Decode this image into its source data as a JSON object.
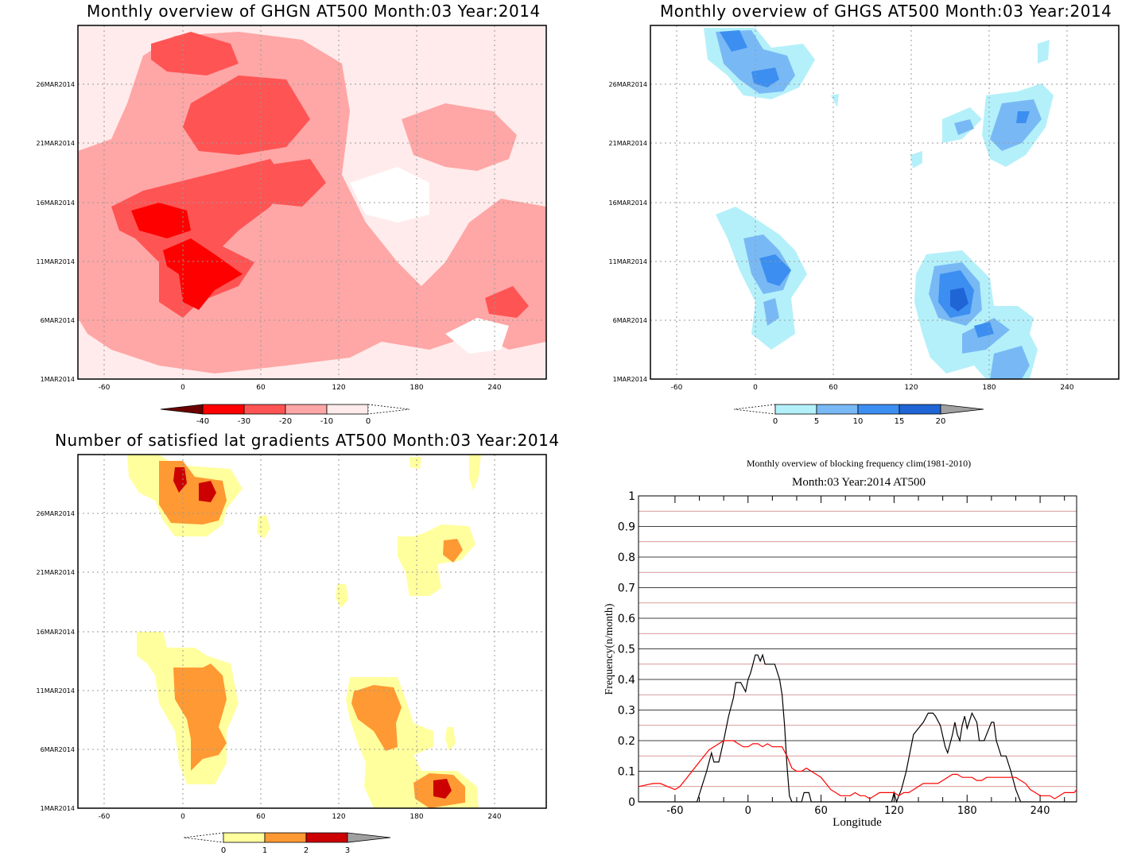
{
  "chart_data": [
    {
      "type": "heatmap",
      "title": "Monthly overview of GHGN AT500 Month:03 Year:2014",
      "x_ticks": [
        "-60",
        "0",
        "60",
        "120",
        "180",
        "240"
      ],
      "y_ticks": [
        "1MAR2014",
        "6MAR2014",
        "11MAR2014",
        "16MAR2014",
        "21MAR2014",
        "26MAR2014"
      ],
      "colorbar": {
        "labels": [
          "-40",
          "-30",
          "-20",
          "-10",
          "0"
        ],
        "colors": [
          "#6b0000",
          "#ff0000",
          "#ff5454",
          "#ffa6a6",
          "#ffebeb"
        ]
      }
    },
    {
      "type": "heatmap",
      "title": "Monthly overview of GHGS AT500 Month:03 Year:2014",
      "x_ticks": [
        "-60",
        "0",
        "60",
        "120",
        "180",
        "240"
      ],
      "y_ticks": [
        "1MAR2014",
        "6MAR2014",
        "11MAR2014",
        "16MAR2014",
        "21MAR2014",
        "26MAR2014"
      ],
      "colorbar": {
        "labels": [
          "0",
          "5",
          "10",
          "15",
          "20"
        ],
        "colors": [
          "#b4f0fa",
          "#78b9f5",
          "#3c8ef0",
          "#1f65d6",
          "#a0a0a0"
        ]
      }
    },
    {
      "type": "heatmap",
      "title": "Number of satisfied lat gradients AT500 Month:03 Year:2014",
      "x_ticks": [
        "-60",
        "0",
        "60",
        "120",
        "180",
        "240"
      ],
      "y_ticks": [
        "1MAR2014",
        "6MAR2014",
        "11MAR2014",
        "16MAR2014",
        "21MAR2014",
        "26MAR2014"
      ],
      "colorbar": {
        "labels": [
          "0",
          "1",
          "2",
          "3"
        ],
        "colors": [
          "#ffff9e",
          "#ff9933",
          "#cc0000",
          "#a0a0a0"
        ]
      }
    },
    {
      "type": "line",
      "title": "Monthly overview of blocking frequency clim(1981-2010)",
      "subtitle": "Month:03 Year:2014  AT500",
      "xlabel": "Longitude",
      "ylabel": "Frequency(n/month)",
      "xlim": [
        -90,
        270
      ],
      "ylim": [
        0,
        1
      ],
      "x_ticks": [
        "-60",
        "0",
        "60",
        "120",
        "180",
        "240"
      ],
      "y_ticks": [
        "0",
        "0.1",
        "0.2",
        "0.3",
        "0.4",
        "0.5",
        "0.6",
        "0.7",
        "0.8",
        "0.9",
        "1"
      ],
      "grid": true,
      "series": [
        {
          "color": "#000000",
          "x": [
            -90,
            -42,
            -38,
            -34,
            -30,
            -28,
            -24,
            -20,
            -16,
            -12,
            -10,
            -6,
            -2,
            0,
            2,
            4,
            6,
            8,
            10,
            12,
            14,
            18,
            22,
            26,
            28,
            30,
            32,
            34,
            36,
            38,
            40,
            44,
            46,
            50,
            52,
            54,
            56,
            118,
            120,
            122,
            124,
            126,
            130,
            134,
            136,
            140,
            144,
            148,
            152,
            154,
            158,
            162,
            164,
            168,
            170,
            172,
            174,
            176,
            178,
            180,
            184,
            188,
            190,
            192,
            194,
            196,
            200,
            202,
            204,
            208,
            212,
            216,
            220,
            224,
            226,
            230,
            270
          ],
          "y": [
            0,
            0,
            0.05,
            0.1,
            0.16,
            0.13,
            0.13,
            0.2,
            0.28,
            0.34,
            0.39,
            0.39,
            0.36,
            0.4,
            0.42,
            0.45,
            0.48,
            0.48,
            0.46,
            0.48,
            0.45,
            0.45,
            0.45,
            0.4,
            0.35,
            0.25,
            0.12,
            0.02,
            0,
            0,
            0,
            0,
            0.03,
            0.03,
            0,
            0,
            0,
            0,
            0.03,
            0,
            0.02,
            0.04,
            0.1,
            0.18,
            0.22,
            0.24,
            0.26,
            0.29,
            0.29,
            0.28,
            0.25,
            0.18,
            0.16,
            0.22,
            0.26,
            0.22,
            0.2,
            0.25,
            0.28,
            0.24,
            0.29,
            0.26,
            0.2,
            0.2,
            0.2,
            0.22,
            0.26,
            0.26,
            0.2,
            0.15,
            0.15,
            0.1,
            0.04,
            0,
            0,
            0,
            0
          ]
        },
        {
          "color": "#ff0000",
          "x": [
            -90,
            -84,
            -78,
            -72,
            -66,
            -60,
            -56,
            -52,
            -48,
            -44,
            -40,
            -36,
            -32,
            -28,
            -24,
            -20,
            -16,
            -12,
            -8,
            -4,
            0,
            4,
            8,
            12,
            16,
            20,
            24,
            28,
            32,
            36,
            40,
            44,
            48,
            52,
            56,
            60,
            64,
            68,
            72,
            76,
            80,
            84,
            88,
            92,
            96,
            100,
            104,
            108,
            112,
            116,
            120,
            124,
            128,
            132,
            136,
            140,
            144,
            148,
            152,
            156,
            160,
            164,
            168,
            172,
            176,
            180,
            184,
            188,
            192,
            196,
            200,
            204,
            208,
            212,
            216,
            220,
            224,
            228,
            232,
            236,
            240,
            244,
            248,
            252,
            256,
            260,
            264,
            268,
            272
          ],
          "y": [
            0.05,
            0.055,
            0.06,
            0.06,
            0.05,
            0.04,
            0.05,
            0.07,
            0.09,
            0.11,
            0.13,
            0.15,
            0.17,
            0.18,
            0.19,
            0.2,
            0.2,
            0.2,
            0.19,
            0.18,
            0.18,
            0.19,
            0.19,
            0.18,
            0.19,
            0.18,
            0.18,
            0.18,
            0.15,
            0.11,
            0.1,
            0.1,
            0.11,
            0.1,
            0.09,
            0.08,
            0.06,
            0.04,
            0.03,
            0.02,
            0.02,
            0.02,
            0.03,
            0.02,
            0.02,
            0.01,
            0.02,
            0.03,
            0.03,
            0.03,
            0.03,
            0.02,
            0.03,
            0.03,
            0.04,
            0.05,
            0.06,
            0.06,
            0.06,
            0.06,
            0.07,
            0.08,
            0.09,
            0.09,
            0.08,
            0.08,
            0.08,
            0.07,
            0.07,
            0.08,
            0.08,
            0.08,
            0.08,
            0.08,
            0.08,
            0.08,
            0.07,
            0.06,
            0.04,
            0.03,
            0.02,
            0.02,
            0.02,
            0.01,
            0.02,
            0.03,
            0.03,
            0.03,
            0.04
          ]
        }
      ]
    }
  ]
}
